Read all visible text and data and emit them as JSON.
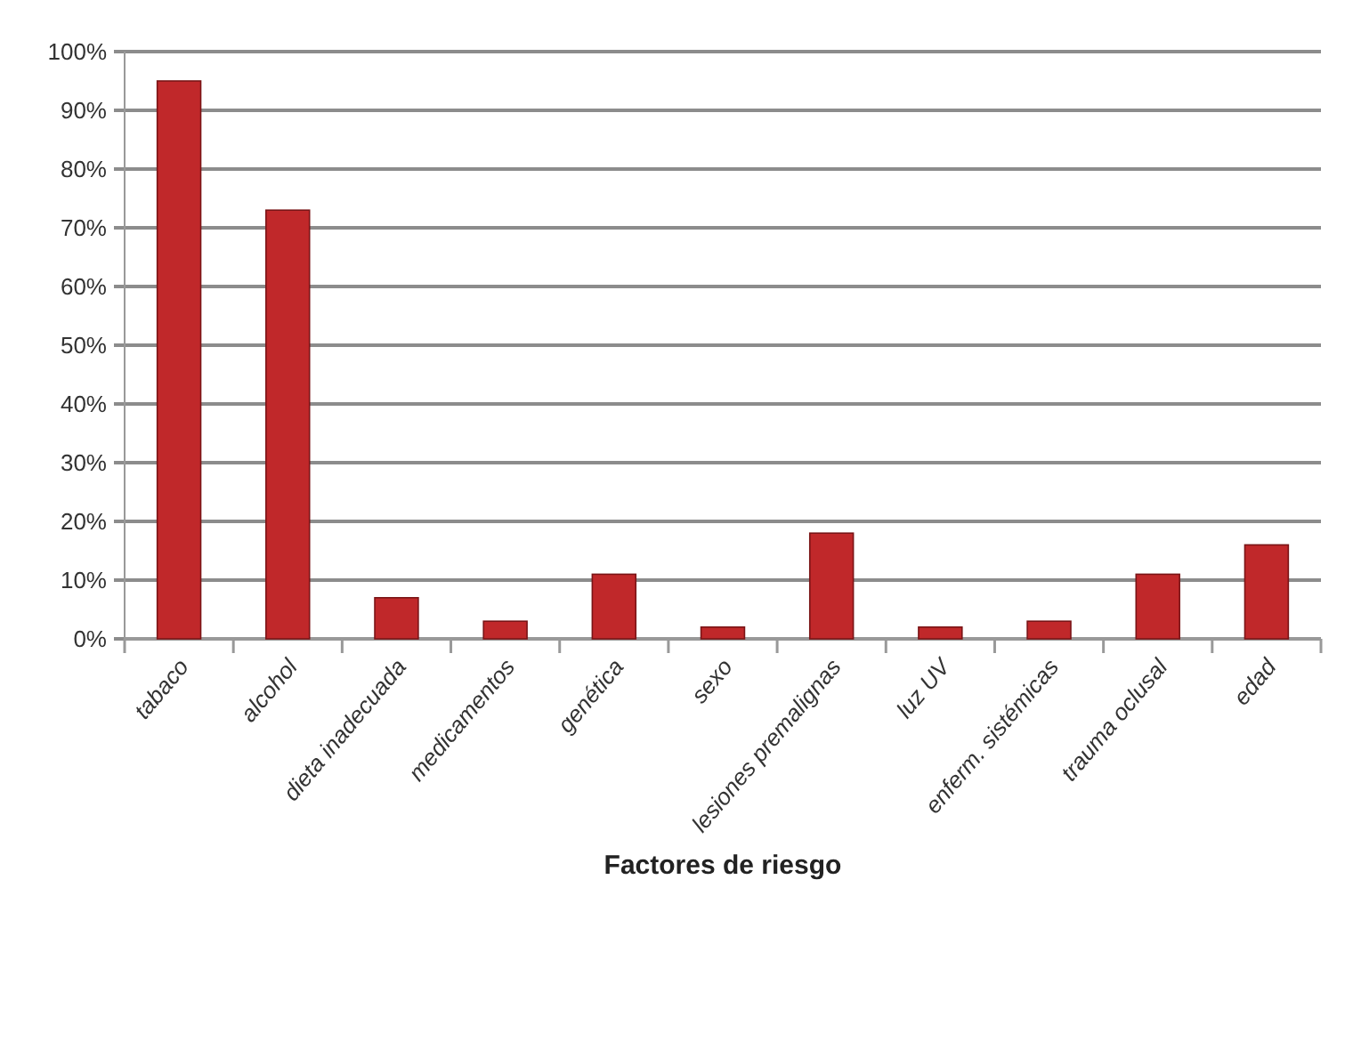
{
  "chart_data": {
    "type": "bar",
    "xlabel": "Factores de riesgo",
    "categories": [
      "tabaco",
      "alcohol",
      "dieta inadecuada",
      "medicamentos",
      "genética",
      "sexo",
      "lesiones premalignas",
      "luz UV",
      "enferm. sistémicas",
      "trauma oclusal",
      "edad"
    ],
    "values": [
      95,
      73,
      7,
      3,
      11,
      2,
      18,
      2,
      3,
      11,
      16
    ],
    "color": "#c0282a",
    "ylim": [
      0,
      100
    ],
    "yticks": [
      {
        "value": 0,
        "label": "0%"
      },
      {
        "value": 10,
        "label": "10%"
      },
      {
        "value": 20,
        "label": "20%"
      },
      {
        "value": 30,
        "label": "30%"
      },
      {
        "value": 40,
        "label": "40%"
      },
      {
        "value": 50,
        "label": "50%"
      },
      {
        "value": 60,
        "label": "60%"
      },
      {
        "value": 70,
        "label": "70%"
      },
      {
        "value": 80,
        "label": "80%"
      },
      {
        "value": 90,
        "label": "90%"
      },
      {
        "value": 100,
        "label": "100%"
      }
    ],
    "grid": "y"
  }
}
